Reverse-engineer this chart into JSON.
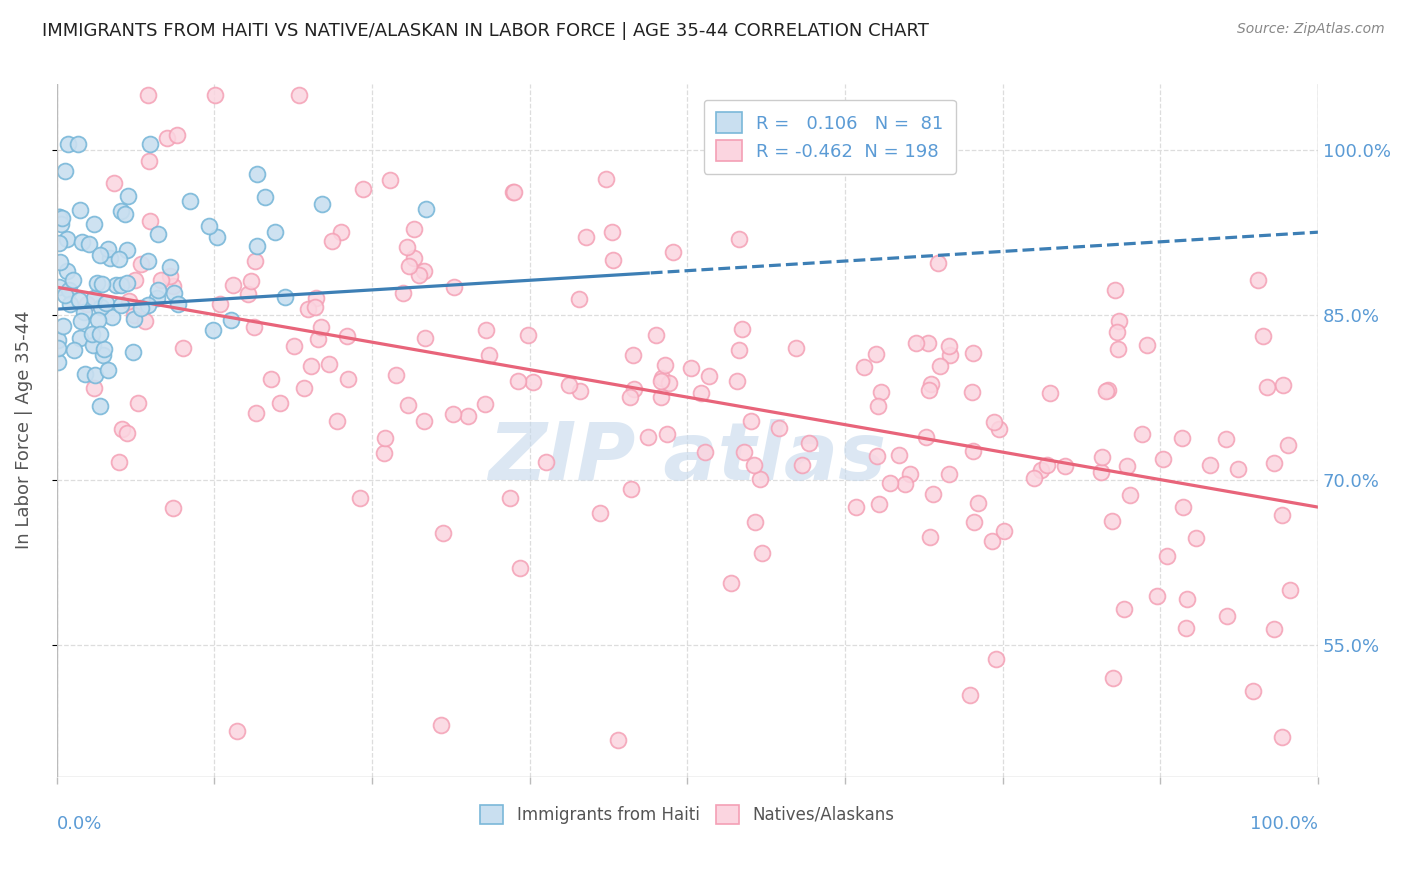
{
  "title": "IMMIGRANTS FROM HAITI VS NATIVE/ALASKAN IN LABOR FORCE | AGE 35-44 CORRELATION CHART",
  "source": "Source: ZipAtlas.com",
  "ylabel": "In Labor Force | Age 35-44",
  "ylabel_ticks": [
    55.0,
    70.0,
    85.0,
    100.0
  ],
  "ylabel_tick_labels": [
    "55.0%",
    "70.0%",
    "85.0%",
    "100.0%"
  ],
  "legend_label1": "Immigrants from Haiti",
  "legend_label2": "Natives/Alaskans",
  "R1": 0.106,
  "N1": 81,
  "R2": -0.462,
  "N2": 198,
  "blue_color": "#7ab8d9",
  "blue_fill": "#c9dff0",
  "pink_color": "#f4a0b5",
  "pink_fill": "#fbd5e0",
  "blue_line_color": "#3d7fb5",
  "pink_line_color": "#e8647a",
  "watermark_color": "#c5d8ec",
  "background_color": "#ffffff",
  "grid_color": "#dddddd",
  "title_color": "#222222",
  "axis_label_color": "#5b9bd5",
  "xlim": [
    0.0,
    1.0
  ],
  "ylim": [
    0.43,
    1.06
  ]
}
